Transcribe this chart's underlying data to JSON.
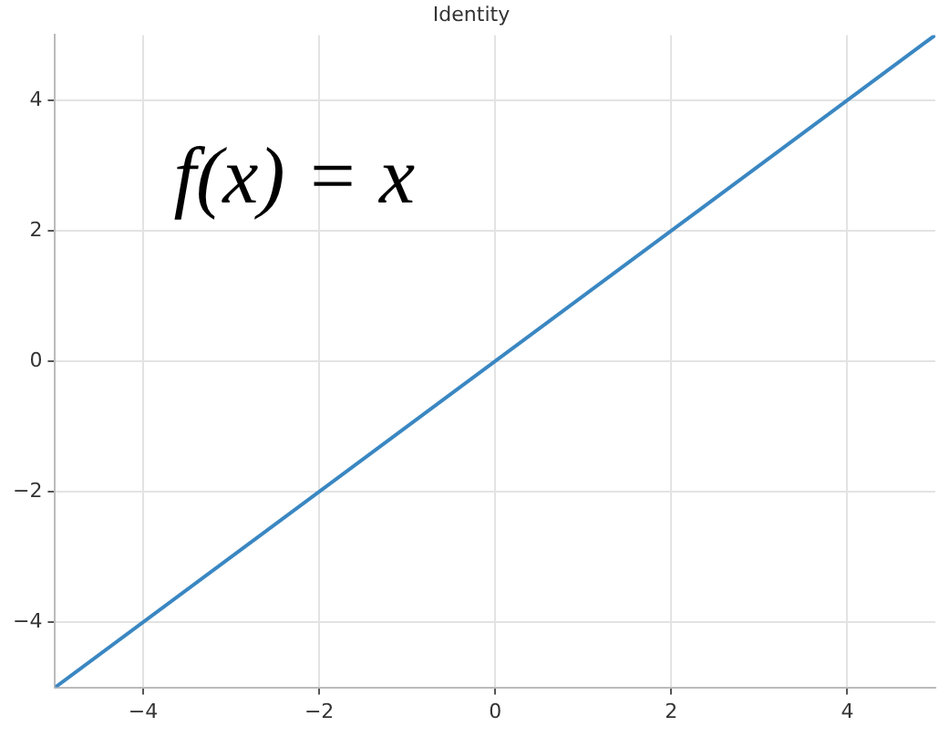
{
  "chart_data": {
    "type": "line",
    "title": "Identity",
    "annotations": [
      "f(x) = x"
    ],
    "x": [
      -5,
      5
    ],
    "series": [
      {
        "color": "#3a87c2",
        "values": [
          -5,
          5
        ]
      }
    ],
    "xlim": [
      -5,
      5
    ],
    "ylim": [
      -5,
      5
    ],
    "xticks": [
      -4,
      -2,
      0,
      2,
      4
    ],
    "yticks": [
      -4,
      -2,
      0,
      2,
      4
    ],
    "grid": true,
    "legend": false,
    "marker": "none",
    "line_style": "solid"
  }
}
